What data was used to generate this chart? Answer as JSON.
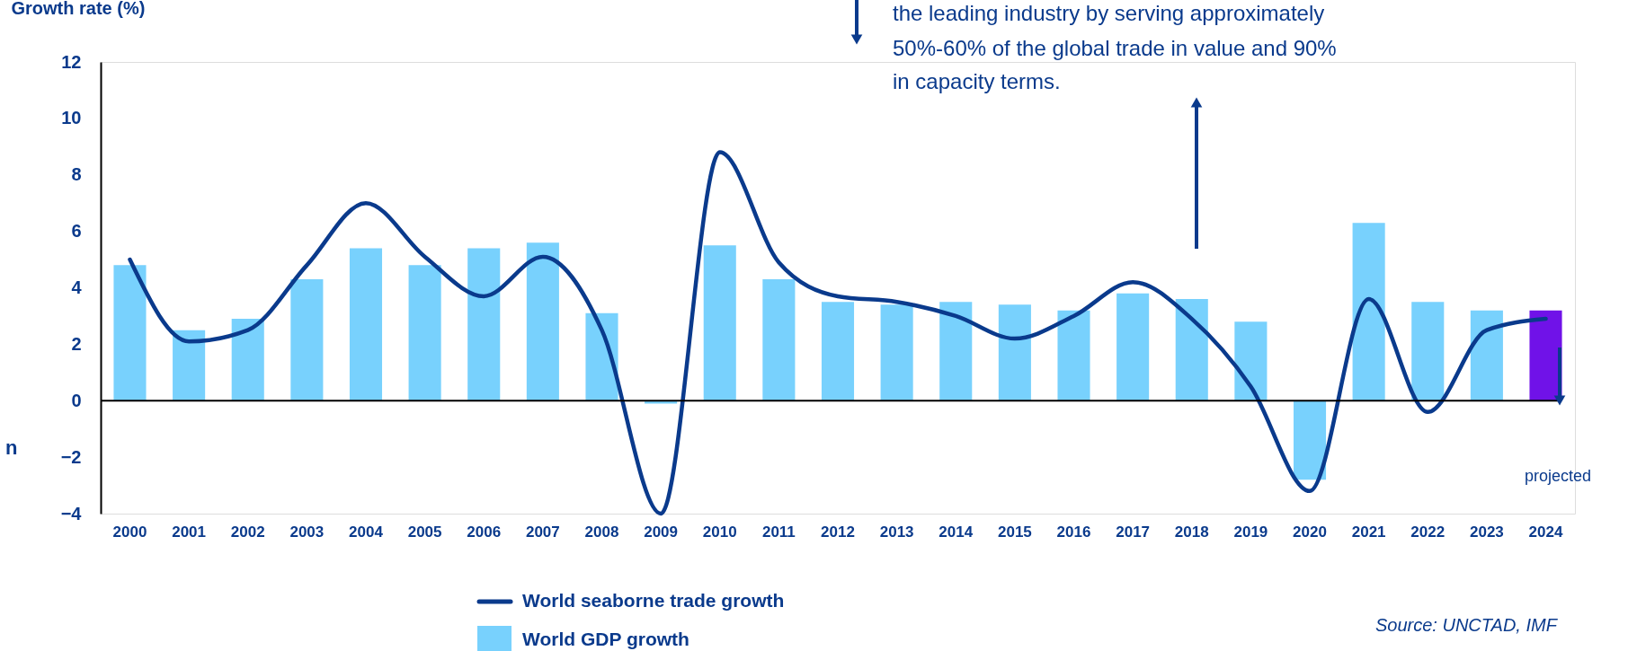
{
  "chart_data": {
    "type": "bar",
    "ylabel": "Growth rate (%)",
    "categories": [
      "2000",
      "2001",
      "2002",
      "2003",
      "2004",
      "2005",
      "2006",
      "2007",
      "2008",
      "2009",
      "2010",
      "2011",
      "2012",
      "2013",
      "2014",
      "2015",
      "2016",
      "2017",
      "2018",
      "2019",
      "2020",
      "2021",
      "2022",
      "2023",
      "2024"
    ],
    "series": [
      {
        "name": "World GDP growth",
        "color": "#78d1fd",
        "colors": [
          "#78d1fd",
          "#78d1fd",
          "#78d1fd",
          "#78d1fd",
          "#78d1fd",
          "#78d1fd",
          "#78d1fd",
          "#78d1fd",
          "#78d1fd",
          "#78d1fd",
          "#78d1fd",
          "#78d1fd",
          "#78d1fd",
          "#78d1fd",
          "#78d1fd",
          "#78d1fd",
          "#78d1fd",
          "#78d1fd",
          "#78d1fd",
          "#78d1fd",
          "#78d1fd",
          "#78d1fd",
          "#78d1fd",
          "#78d1fd",
          "#7012e8"
        ],
        "values": [
          4.8,
          2.5,
          2.9,
          4.3,
          5.4,
          4.8,
          5.4,
          5.6,
          3.1,
          -0.1,
          5.5,
          4.3,
          3.5,
          3.4,
          3.5,
          3.4,
          3.2,
          3.8,
          3.6,
          2.8,
          -2.8,
          6.3,
          3.5,
          3.2,
          3.2
        ]
      },
      {
        "name": "World seaborne trade growth",
        "type": "line",
        "color": "#0a3a8c",
        "values": [
          5.0,
          2.1,
          2.5,
          4.8,
          7.0,
          5.1,
          3.7,
          5.1,
          2.5,
          -4.0,
          8.8,
          4.9,
          3.7,
          3.5,
          3.0,
          2.2,
          3.0,
          4.2,
          2.9,
          0.5,
          -3.2,
          3.6,
          -0.4,
          2.5,
          2.9
        ]
      }
    ],
    "ylim": [
      -4,
      12
    ],
    "yticks": [
      -4,
      -2,
      0,
      2,
      4,
      6,
      8,
      10,
      12
    ],
    "ref_lines": [
      {
        "axis": "y",
        "value": 0,
        "color": "#000000"
      }
    ],
    "grid": false,
    "legend": "bottom",
    "annotations": [
      "the leading industry by serving approximately",
      "50%-60% of the global trade in value and 90%",
      "in capacity terms.",
      "projected",
      "Source: UNCTAD, IMF",
      "n"
    ]
  }
}
